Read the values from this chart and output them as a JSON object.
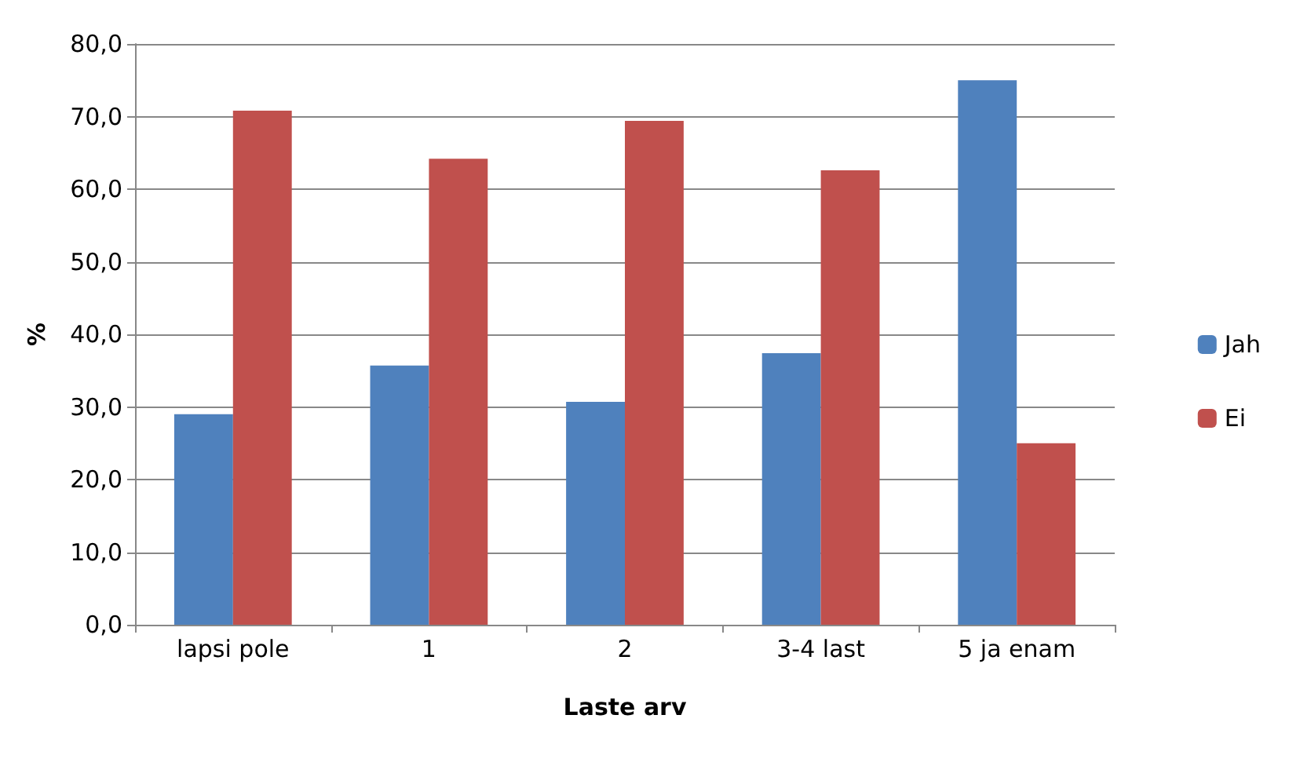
{
  "chart_data": {
    "type": "bar",
    "xlabel": "Laste arv",
    "ylabel": "%",
    "categories": [
      "lapsi pole",
      "1",
      "2",
      "3-4 last",
      "5 ja enam"
    ],
    "series": [
      {
        "name": "Jah",
        "color": "#4f81bd",
        "values": [
          29.0,
          35.7,
          30.7,
          37.4,
          75.0
        ]
      },
      {
        "name": "Ei",
        "color": "#c0504d",
        "values": [
          70.8,
          64.2,
          69.4,
          62.6,
          25.0
        ]
      }
    ],
    "ylim": [
      0,
      80
    ],
    "yticks": [
      {
        "value": 0,
        "label": "0,0"
      },
      {
        "value": 10,
        "label": "10,0"
      },
      {
        "value": 20,
        "label": "20,0"
      },
      {
        "value": 30,
        "label": "30,0"
      },
      {
        "value": 40,
        "label": "40,0"
      },
      {
        "value": 50,
        "label": "50,0"
      },
      {
        "value": 60,
        "label": "60,0"
      },
      {
        "value": 70,
        "label": "70,0"
      },
      {
        "value": 80,
        "label": "80,0"
      }
    ],
    "grid": "y",
    "legend": "right"
  }
}
